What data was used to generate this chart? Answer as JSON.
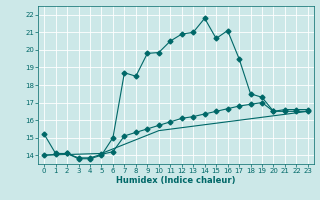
{
  "xlabel": "Humidex (Indice chaleur)",
  "bg_color": "#cce8e8",
  "grid_color": "#ffffff",
  "line_color": "#006868",
  "xlim": [
    -0.5,
    23.5
  ],
  "ylim": [
    13.5,
    22.5
  ],
  "xticks": [
    0,
    1,
    2,
    3,
    4,
    5,
    6,
    7,
    8,
    9,
    10,
    11,
    12,
    13,
    14,
    15,
    16,
    17,
    18,
    19,
    20,
    21,
    22,
    23
  ],
  "yticks": [
    14,
    15,
    16,
    17,
    18,
    19,
    20,
    21,
    22
  ],
  "curve1_x": [
    0,
    1,
    2,
    3,
    4,
    5,
    6,
    7,
    8,
    9,
    10,
    11,
    12,
    13,
    14,
    15,
    16,
    17,
    18,
    19,
    20,
    21,
    22,
    23
  ],
  "curve1_y": [
    15.2,
    14.1,
    14.1,
    13.8,
    13.8,
    14.0,
    15.0,
    18.7,
    18.5,
    19.8,
    19.85,
    20.5,
    20.9,
    21.0,
    21.8,
    20.65,
    21.1,
    19.5,
    17.5,
    17.3,
    16.5,
    16.5,
    16.5,
    16.5
  ],
  "curve2_x": [
    0,
    1,
    2,
    3,
    4,
    5,
    6,
    7,
    8,
    9,
    10,
    11,
    12,
    13,
    14,
    15,
    16,
    17,
    18,
    19,
    20,
    21,
    22,
    23
  ],
  "curve2_y": [
    14.0,
    14.05,
    14.1,
    13.85,
    13.85,
    14.05,
    14.2,
    15.1,
    15.3,
    15.5,
    15.7,
    15.9,
    16.1,
    16.2,
    16.35,
    16.5,
    16.65,
    16.8,
    16.9,
    17.0,
    16.5,
    16.6,
    16.6,
    16.6
  ],
  "curve3_x": [
    0,
    5,
    10,
    23
  ],
  "curve3_y": [
    14.0,
    14.1,
    15.4,
    16.5
  ]
}
